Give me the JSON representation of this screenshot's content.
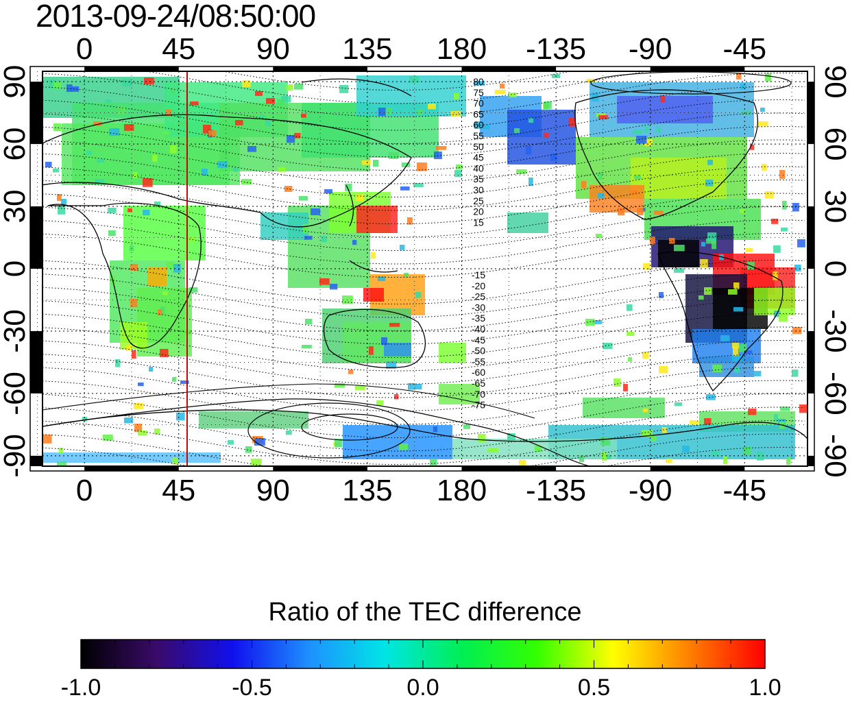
{
  "timestamp": "2013-09-24/08:50:00",
  "map": {
    "x_axis_top_labels": [
      "0",
      "45",
      "90",
      "135",
      "180",
      "-135",
      "-90",
      "-45"
    ],
    "x_axis_bottom_labels": [
      "0",
      "45",
      "90",
      "135",
      "180",
      "-135",
      "-90",
      "-45"
    ],
    "x_axis_values": [
      0,
      45,
      90,
      135,
      180,
      225,
      270,
      315
    ],
    "y_axis_left_labels": [
      "90",
      "60",
      "30",
      "0",
      "-30",
      "-60",
      "-90"
    ],
    "y_axis_right_labels": [
      "90",
      "60",
      "30",
      "0",
      "-30",
      "-60",
      "-90"
    ],
    "y_axis_values": [
      90,
      60,
      30,
      0,
      -30,
      -60,
      -90
    ],
    "lon_range": [
      -20,
      345
    ],
    "lat_range": [
      -95,
      95
    ],
    "grid": "dotted",
    "marker_line_lon": 49,
    "marker_line_color": "#cc0000",
    "contour_labels_north": [
      "80",
      "75",
      "70",
      "65",
      "60",
      "55",
      "50",
      "45",
      "40",
      "35",
      "30",
      "25",
      "20",
      "15"
    ],
    "contour_labels_south": [
      "-15",
      "-20",
      "-25",
      "-30",
      "-35",
      "-40",
      "-45",
      "-50",
      "-55",
      "-60",
      "-65",
      "-70",
      "-75"
    ]
  },
  "colorbar": {
    "title": "Ratio of the TEC difference",
    "tick_labels": [
      "-1.0",
      "-0.5",
      "0.0",
      "0.5",
      "1.0"
    ],
    "tick_values": [
      -1.0,
      -0.5,
      0.0,
      0.5,
      1.0
    ],
    "range": [
      -1.0,
      1.0
    ],
    "colors": [
      "#000000",
      "#3a0a6a",
      "#1010ee",
      "#1e90ff",
      "#00e5e5",
      "#00ee55",
      "#33ff00",
      "#ffff00",
      "#ff8000",
      "#ff0000"
    ]
  }
}
